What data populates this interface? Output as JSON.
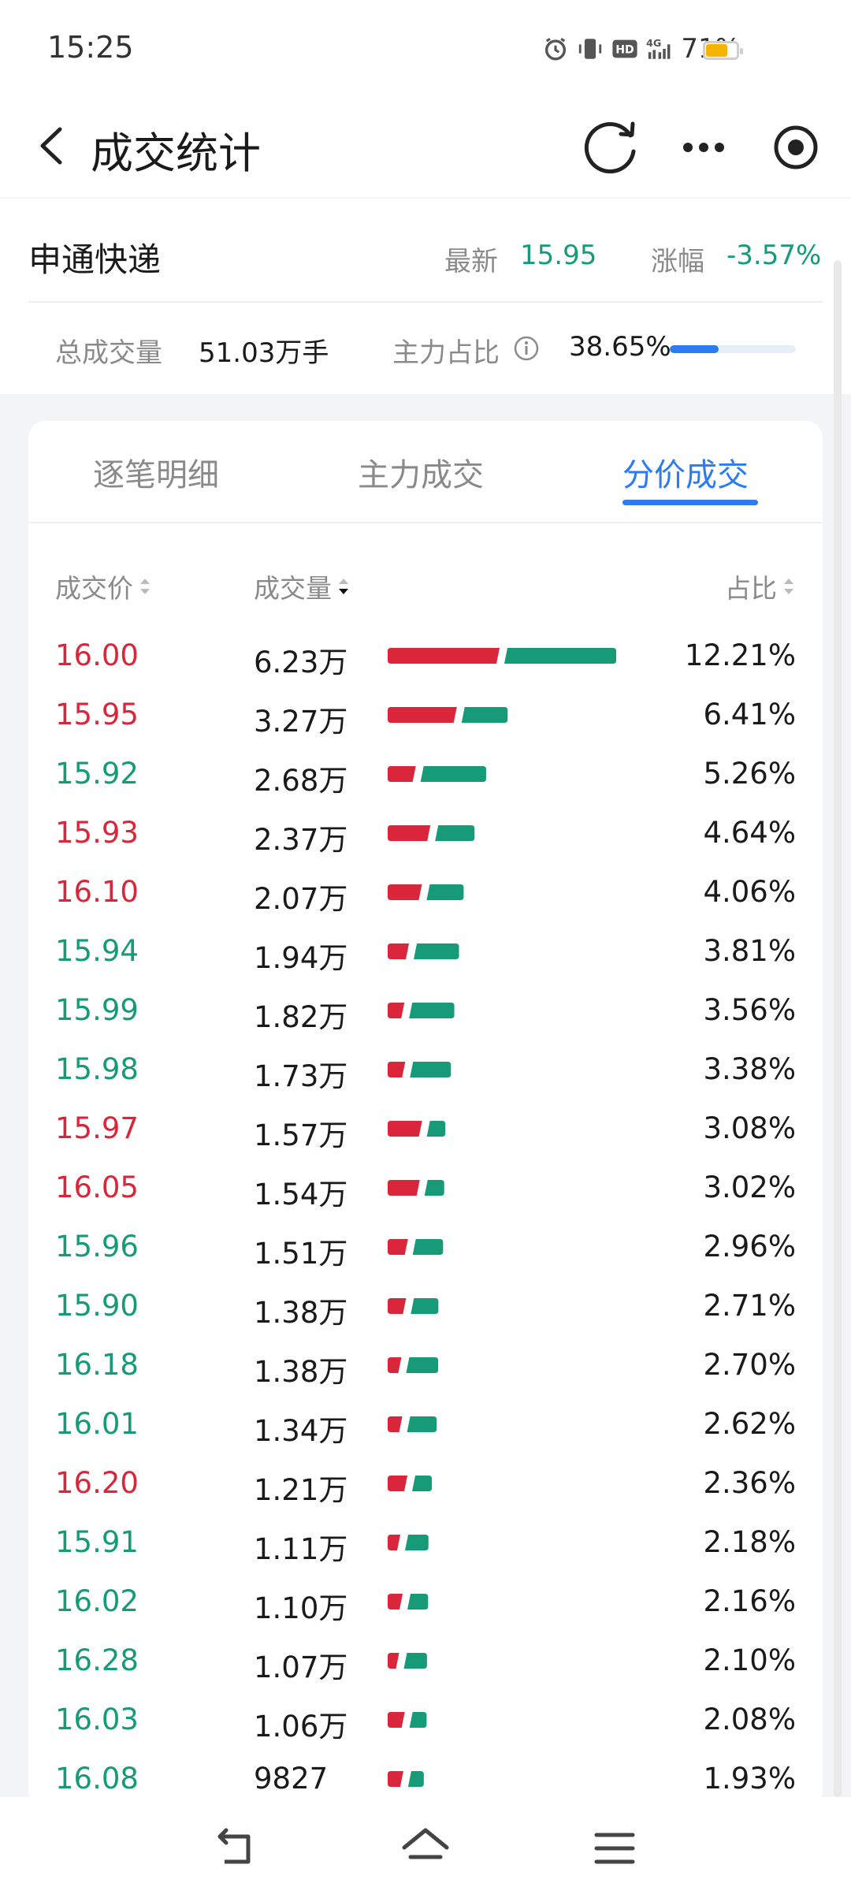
{
  "status": {
    "time": "15:25",
    "battery": "71%",
    "battery_level": 0.71,
    "network": "4G"
  },
  "header": {
    "title": "成交统计"
  },
  "quote": {
    "name": "申通快递",
    "latest_label": "最新",
    "latest_value": "15.95",
    "change_label": "涨幅",
    "change_value": "-3.57%",
    "volume_label": "总成交量",
    "volume_value": "51.03万手",
    "main_label": "主力占比",
    "main_value": "38.65%",
    "main_ratio": 0.3865
  },
  "tabs": [
    {
      "label": "逐笔明细"
    },
    {
      "label": "主力成交"
    },
    {
      "label": "分价成交",
      "active": true
    }
  ],
  "columns": {
    "price": "成交价",
    "volume": "成交量",
    "ratio": "占比"
  },
  "colors": {
    "up": "#d9263a",
    "down": "#169a77",
    "accent": "#2d7bf0"
  },
  "rows": [
    {
      "price": "16.00",
      "volume": "6.23万",
      "ratio": "12.21%",
      "dir": "up",
      "red": 0.5,
      "green": 0.5
    },
    {
      "price": "15.95",
      "volume": "3.27万",
      "ratio": "6.41%",
      "dir": "up",
      "red": 0.6,
      "green": 0.4
    },
    {
      "price": "15.92",
      "volume": "2.68万",
      "ratio": "5.26%",
      "dir": "down",
      "red": 0.3,
      "green": 0.7
    },
    {
      "price": "15.93",
      "volume": "2.37万",
      "ratio": "4.64%",
      "dir": "up",
      "red": 0.52,
      "green": 0.48
    },
    {
      "price": "16.10",
      "volume": "2.07万",
      "ratio": "4.06%",
      "dir": "up",
      "red": 0.48,
      "green": 0.52
    },
    {
      "price": "15.94",
      "volume": "1.94万",
      "ratio": "3.81%",
      "dir": "down",
      "red": 0.32,
      "green": 0.68
    },
    {
      "price": "15.99",
      "volume": "1.82万",
      "ratio": "3.56%",
      "dir": "down",
      "red": 0.27,
      "green": 0.73
    },
    {
      "price": "15.98",
      "volume": "1.73万",
      "ratio": "3.38%",
      "dir": "down",
      "red": 0.3,
      "green": 0.7
    },
    {
      "price": "15.97",
      "volume": "1.57万",
      "ratio": "3.08%",
      "dir": "up",
      "red": 0.65,
      "green": 0.35
    },
    {
      "price": "16.05",
      "volume": "1.54万",
      "ratio": "3.02%",
      "dir": "up",
      "red": 0.62,
      "green": 0.38
    },
    {
      "price": "15.96",
      "volume": "1.51万",
      "ratio": "2.96%",
      "dir": "down",
      "red": 0.4,
      "green": 0.6
    },
    {
      "price": "15.90",
      "volume": "1.38万",
      "ratio": "2.71%",
      "dir": "down",
      "red": 0.4,
      "green": 0.6
    },
    {
      "price": "16.18",
      "volume": "1.38万",
      "ratio": "2.70%",
      "dir": "down",
      "red": 0.3,
      "green": 0.7
    },
    {
      "price": "16.01",
      "volume": "1.34万",
      "ratio": "2.62%",
      "dir": "down",
      "red": 0.33,
      "green": 0.67
    },
    {
      "price": "16.20",
      "volume": "1.21万",
      "ratio": "2.36%",
      "dir": "up",
      "red": 0.5,
      "green": 0.5
    },
    {
      "price": "15.91",
      "volume": "1.11万",
      "ratio": "2.18%",
      "dir": "down",
      "red": 0.35,
      "green": 0.65
    },
    {
      "price": "16.02",
      "volume": "1.10万",
      "ratio": "2.16%",
      "dir": "down",
      "red": 0.42,
      "green": 0.58
    },
    {
      "price": "16.28",
      "volume": "1.07万",
      "ratio": "2.10%",
      "dir": "down",
      "red": 0.33,
      "green": 0.67
    },
    {
      "price": "16.03",
      "volume": "1.06万",
      "ratio": "2.08%",
      "dir": "down",
      "red": 0.5,
      "green": 0.5
    },
    {
      "price": "16.08",
      "volume": "9827",
      "ratio": "1.93%",
      "dir": "down",
      "red": 0.5,
      "green": 0.5
    }
  ]
}
